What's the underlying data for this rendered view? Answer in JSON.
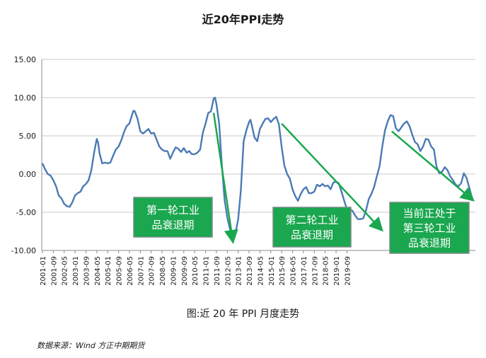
{
  "chart_data": {
    "type": "line",
    "title": "近20年PPI走势",
    "caption": "图:近 20 年 PPI 月度走势",
    "source": "数据来源：Wind  方正中期期货",
    "ylim": [
      -10,
      15
    ],
    "yticks": [
      "15.00",
      "10.00",
      "5.00",
      "0.00",
      "-5.00",
      "-10.00"
    ],
    "grid": "horizontal",
    "xlabels": [
      "2001-01",
      "2001-09",
      "2002-05",
      "2003-01",
      "2003-09",
      "2004-05",
      "2005-01",
      "2005-09",
      "2006-05",
      "2007-01",
      "2007-09",
      "2008-05",
      "2009-01",
      "2009-09",
      "2010-05",
      "2011-01",
      "2011-09",
      "2012-05",
      "2013-01",
      "2013-09",
      "2014-05",
      "2015-01",
      "2015-09",
      "2016-05",
      "2017-01",
      "2017-09",
      "2018-05",
      "2019-01",
      "2019-09"
    ],
    "series": [
      {
        "color": "#4a7ab5",
        "points": [
          [
            0,
            1.4
          ],
          [
            2,
            0.6
          ],
          [
            4,
            0
          ],
          [
            6,
            -0.2
          ],
          [
            8,
            -0.8
          ],
          [
            10,
            -1.6
          ],
          [
            12,
            -2.8
          ],
          [
            14,
            -3.2
          ],
          [
            16,
            -3.9
          ],
          [
            18,
            -4.2
          ],
          [
            20,
            -4.3
          ],
          [
            22,
            -3.7
          ],
          [
            24,
            -2.8
          ],
          [
            26,
            -2.5
          ],
          [
            28,
            -2.3
          ],
          [
            30,
            -1.6
          ],
          [
            32,
            -1.3
          ],
          [
            34,
            -0.8
          ],
          [
            36,
            0.5
          ],
          [
            38,
            2.8
          ],
          [
            40,
            4.6
          ],
          [
            41,
            4.1
          ],
          [
            42,
            2.7
          ],
          [
            44,
            1.4
          ],
          [
            46,
            1.5
          ],
          [
            48,
            1.4
          ],
          [
            50,
            1.5
          ],
          [
            52,
            2.4
          ],
          [
            54,
            3.2
          ],
          [
            56,
            3.6
          ],
          [
            58,
            4.4
          ],
          [
            60,
            5.5
          ],
          [
            62,
            6.3
          ],
          [
            64,
            6.6
          ],
          [
            66,
            7.8
          ],
          [
            67,
            8.3
          ],
          [
            68,
            8.2
          ],
          [
            70,
            7.2
          ],
          [
            72,
            5.6
          ],
          [
            74,
            5.3
          ],
          [
            76,
            5.6
          ],
          [
            78,
            5.9
          ],
          [
            80,
            5.3
          ],
          [
            82,
            5.4
          ],
          [
            84,
            4.5
          ],
          [
            86,
            3.6
          ],
          [
            88,
            3.2
          ],
          [
            90,
            3.0
          ],
          [
            92,
            3.0
          ],
          [
            94,
            2.0
          ],
          [
            96,
            2.8
          ],
          [
            98,
            3.5
          ],
          [
            100,
            3.3
          ],
          [
            102,
            2.9
          ],
          [
            104,
            3.4
          ],
          [
            106,
            2.8
          ],
          [
            108,
            3.0
          ],
          [
            110,
            2.6
          ],
          [
            112,
            2.6
          ],
          [
            114,
            2.8
          ],
          [
            116,
            3.2
          ],
          [
            118,
            5.4
          ],
          [
            120,
            6.6
          ],
          [
            122,
            8.0
          ],
          [
            124,
            8.2
          ],
          [
            126,
            9.9
          ],
          [
            127,
            10.0
          ],
          [
            128,
            9.2
          ],
          [
            130,
            6.6
          ],
          [
            132,
            1.2
          ],
          [
            134,
            -3.4
          ],
          [
            136,
            -5.7
          ],
          [
            138,
            -7.2
          ],
          [
            140,
            -8.2
          ],
          [
            142,
            -7.8
          ],
          [
            144,
            -5.9
          ],
          [
            146,
            -2.1
          ],
          [
            148,
            4.3
          ],
          [
            150,
            5.7
          ],
          [
            152,
            6.8
          ],
          [
            153,
            7.1
          ],
          [
            154,
            6.4
          ],
          [
            156,
            4.8
          ],
          [
            158,
            4.3
          ],
          [
            160,
            5.9
          ],
          [
            162,
            6.6
          ],
          [
            164,
            7.2
          ],
          [
            166,
            7.3
          ],
          [
            168,
            6.8
          ],
          [
            170,
            7.2
          ],
          [
            172,
            7.5
          ],
          [
            174,
            6.5
          ],
          [
            176,
            3.5
          ],
          [
            178,
            1.1
          ],
          [
            180,
            0.0
          ],
          [
            182,
            -0.6
          ],
          [
            184,
            -2.0
          ],
          [
            186,
            -2.9
          ],
          [
            188,
            -3.5
          ],
          [
            190,
            -2.6
          ],
          [
            192,
            -2.0
          ],
          [
            194,
            -1.7
          ],
          [
            196,
            -2.5
          ],
          [
            198,
            -2.5
          ],
          [
            200,
            -2.3
          ],
          [
            202,
            -1.4
          ],
          [
            204,
            -1.6
          ],
          [
            206,
            -1.3
          ],
          [
            208,
            -1.6
          ],
          [
            210,
            -1.5
          ],
          [
            212,
            -2.0
          ],
          [
            214,
            -1.1
          ],
          [
            216,
            -1.0
          ],
          [
            218,
            -1.2
          ],
          [
            220,
            -2.3
          ],
          [
            222,
            -3.5
          ],
          [
            224,
            -4.6
          ],
          [
            226,
            -4.6
          ],
          [
            228,
            -4.8
          ],
          [
            230,
            -5.4
          ],
          [
            232,
            -5.9
          ],
          [
            234,
            -5.9
          ],
          [
            236,
            -5.8
          ],
          [
            238,
            -4.8
          ],
          [
            240,
            -3.3
          ],
          [
            242,
            -2.6
          ],
          [
            244,
            -1.7
          ],
          [
            246,
            -0.3
          ],
          [
            248,
            1.0
          ],
          [
            250,
            3.6
          ],
          [
            252,
            5.7
          ],
          [
            254,
            6.9
          ],
          [
            256,
            7.7
          ],
          [
            258,
            7.6
          ],
          [
            260,
            6.0
          ],
          [
            262,
            5.6
          ],
          [
            264,
            6.1
          ],
          [
            266,
            6.6
          ],
          [
            268,
            6.9
          ],
          [
            270,
            6.3
          ],
          [
            272,
            5.2
          ],
          [
            274,
            4.2
          ],
          [
            276,
            3.9
          ],
          [
            278,
            3.0
          ],
          [
            280,
            3.6
          ],
          [
            282,
            4.6
          ],
          [
            284,
            4.5
          ],
          [
            286,
            3.6
          ],
          [
            288,
            3.2
          ],
          [
            290,
            0.9
          ],
          [
            292,
            0.1
          ],
          [
            294,
            0.3
          ],
          [
            296,
            0.9
          ],
          [
            298,
            0.5
          ],
          [
            300,
            -0.3
          ],
          [
            302,
            -0.8
          ],
          [
            304,
            -1.4
          ],
          [
            306,
            -1.6
          ],
          [
            308,
            -1.2
          ],
          [
            310,
            0.1
          ],
          [
            312,
            -0.5
          ],
          [
            314,
            -1.8
          ],
          [
            316,
            -3.1
          ]
        ]
      }
    ],
    "annotations": [
      {
        "lines": [
          "第一轮工业",
          "品衰退期"
        ],
        "color": "#1aa74f"
      },
      {
        "lines": [
          "第二轮工业",
          "品衰退期"
        ],
        "color": "#1aa74f"
      },
      {
        "lines": [
          "当前正处于",
          "第三轮工业",
          "品衰退期"
        ],
        "color": "#1aa74f"
      }
    ]
  }
}
